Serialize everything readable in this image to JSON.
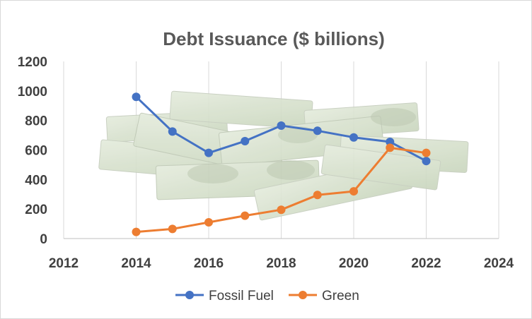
{
  "chart_data": {
    "type": "scatter",
    "title": "Debt Issuance ($ billions)",
    "xlabel": "",
    "ylabel": "",
    "xlim": [
      2012,
      2024
    ],
    "ylim": [
      0,
      1200
    ],
    "x_ticks": [
      2012,
      2014,
      2016,
      2018,
      2020,
      2022,
      2024
    ],
    "y_ticks": [
      0,
      200,
      400,
      600,
      800,
      1000,
      1200
    ],
    "grid": "vertical",
    "legend_position": "bottom",
    "background_image": "stacks-of-dollar-bills",
    "series": [
      {
        "name": "Fossil Fuel",
        "color": "#4472C4",
        "points": [
          {
            "x": 2014,
            "y": 960
          },
          {
            "x": 2015,
            "y": 725
          },
          {
            "x": 2016,
            "y": 580
          },
          {
            "x": 2017,
            "y": 660
          },
          {
            "x": 2018,
            "y": 765
          },
          {
            "x": 2019,
            "y": 730
          },
          {
            "x": 2020,
            "y": 685
          },
          {
            "x": 2021,
            "y": 655
          },
          {
            "x": 2022,
            "y": 525
          }
        ]
      },
      {
        "name": "Green",
        "color": "#ED7D31",
        "points": [
          {
            "x": 2014,
            "y": 45
          },
          {
            "x": 2015,
            "y": 65
          },
          {
            "x": 2016,
            "y": 110
          },
          {
            "x": 2017,
            "y": 155
          },
          {
            "x": 2018,
            "y": 195
          },
          {
            "x": 2019,
            "y": 295
          },
          {
            "x": 2020,
            "y": 320
          },
          {
            "x": 2021,
            "y": 615
          },
          {
            "x": 2022,
            "y": 580
          }
        ]
      }
    ]
  }
}
